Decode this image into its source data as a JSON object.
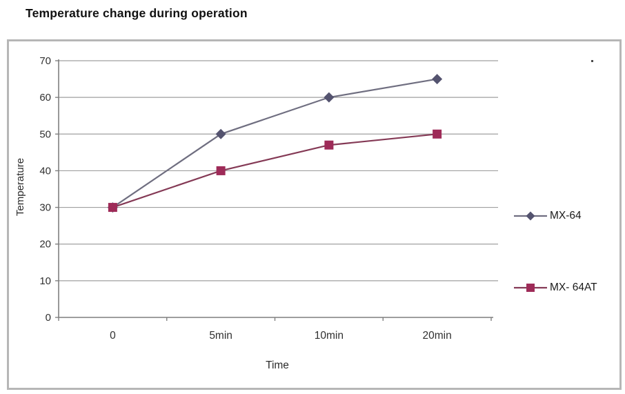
{
  "page": {
    "heading": "Temperature change during operation"
  },
  "chart_data": {
    "type": "line",
    "title": "Temperature change during operation",
    "xlabel": "Time",
    "ylabel": "Temperature",
    "categories": [
      "0",
      "5min",
      "10min",
      "20min"
    ],
    "series": [
      {
        "name": "MX-64",
        "values": [
          30,
          50,
          60,
          65
        ],
        "marker": "diamond",
        "line_color": "#6f6e80",
        "marker_color": "#54536f"
      },
      {
        "name": "MX- 64AT",
        "values": [
          30,
          40,
          47,
          50
        ],
        "marker": "square",
        "line_color": "#843955",
        "marker_color": "#9e2b58"
      }
    ],
    "ylim": [
      0,
      70
    ],
    "yticks": [
      0,
      10,
      20,
      30,
      40,
      50,
      60,
      70
    ],
    "grid": "horizontal",
    "legend_position": "right",
    "axis_color": "#7f7f7f",
    "grid_color": "#9f9f9f",
    "tick_label_color": "#303030"
  }
}
